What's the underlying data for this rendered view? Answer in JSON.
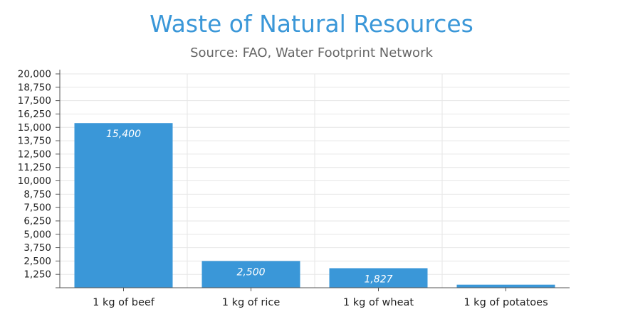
{
  "chart_data": {
    "type": "bar",
    "title": "Waste of Natural Resources",
    "subtitle": "Source: FAO, Water Footprint Network",
    "categories": [
      "1 kg of beef",
      "1 kg of rice",
      "1 kg of wheat",
      "1 kg of potatoes"
    ],
    "values": [
      15400,
      2500,
      1827,
      287
    ],
    "data_labels": [
      "15,400",
      "2,500",
      "1,827",
      ""
    ],
    "xlabel": "",
    "ylabel": "",
    "ylim": [
      0,
      20000
    ],
    "yticks": [
      1250,
      2500,
      3750,
      5000,
      6250,
      7500,
      8750,
      10000,
      11250,
      12500,
      13750,
      15000,
      16250,
      17500,
      18750,
      20000
    ],
    "ytick_labels": [
      "1,250",
      "2,500",
      "3,750",
      "5,000",
      "6,250",
      "7,500",
      "8,750",
      "10,000",
      "11,250",
      "12,500",
      "13,750",
      "15,000",
      "16,250",
      "17,500",
      "18,750",
      "20,000"
    ],
    "grid": true,
    "legend": "none",
    "bar_color": "#3a97d8",
    "title_color": "#3a97d8"
  }
}
